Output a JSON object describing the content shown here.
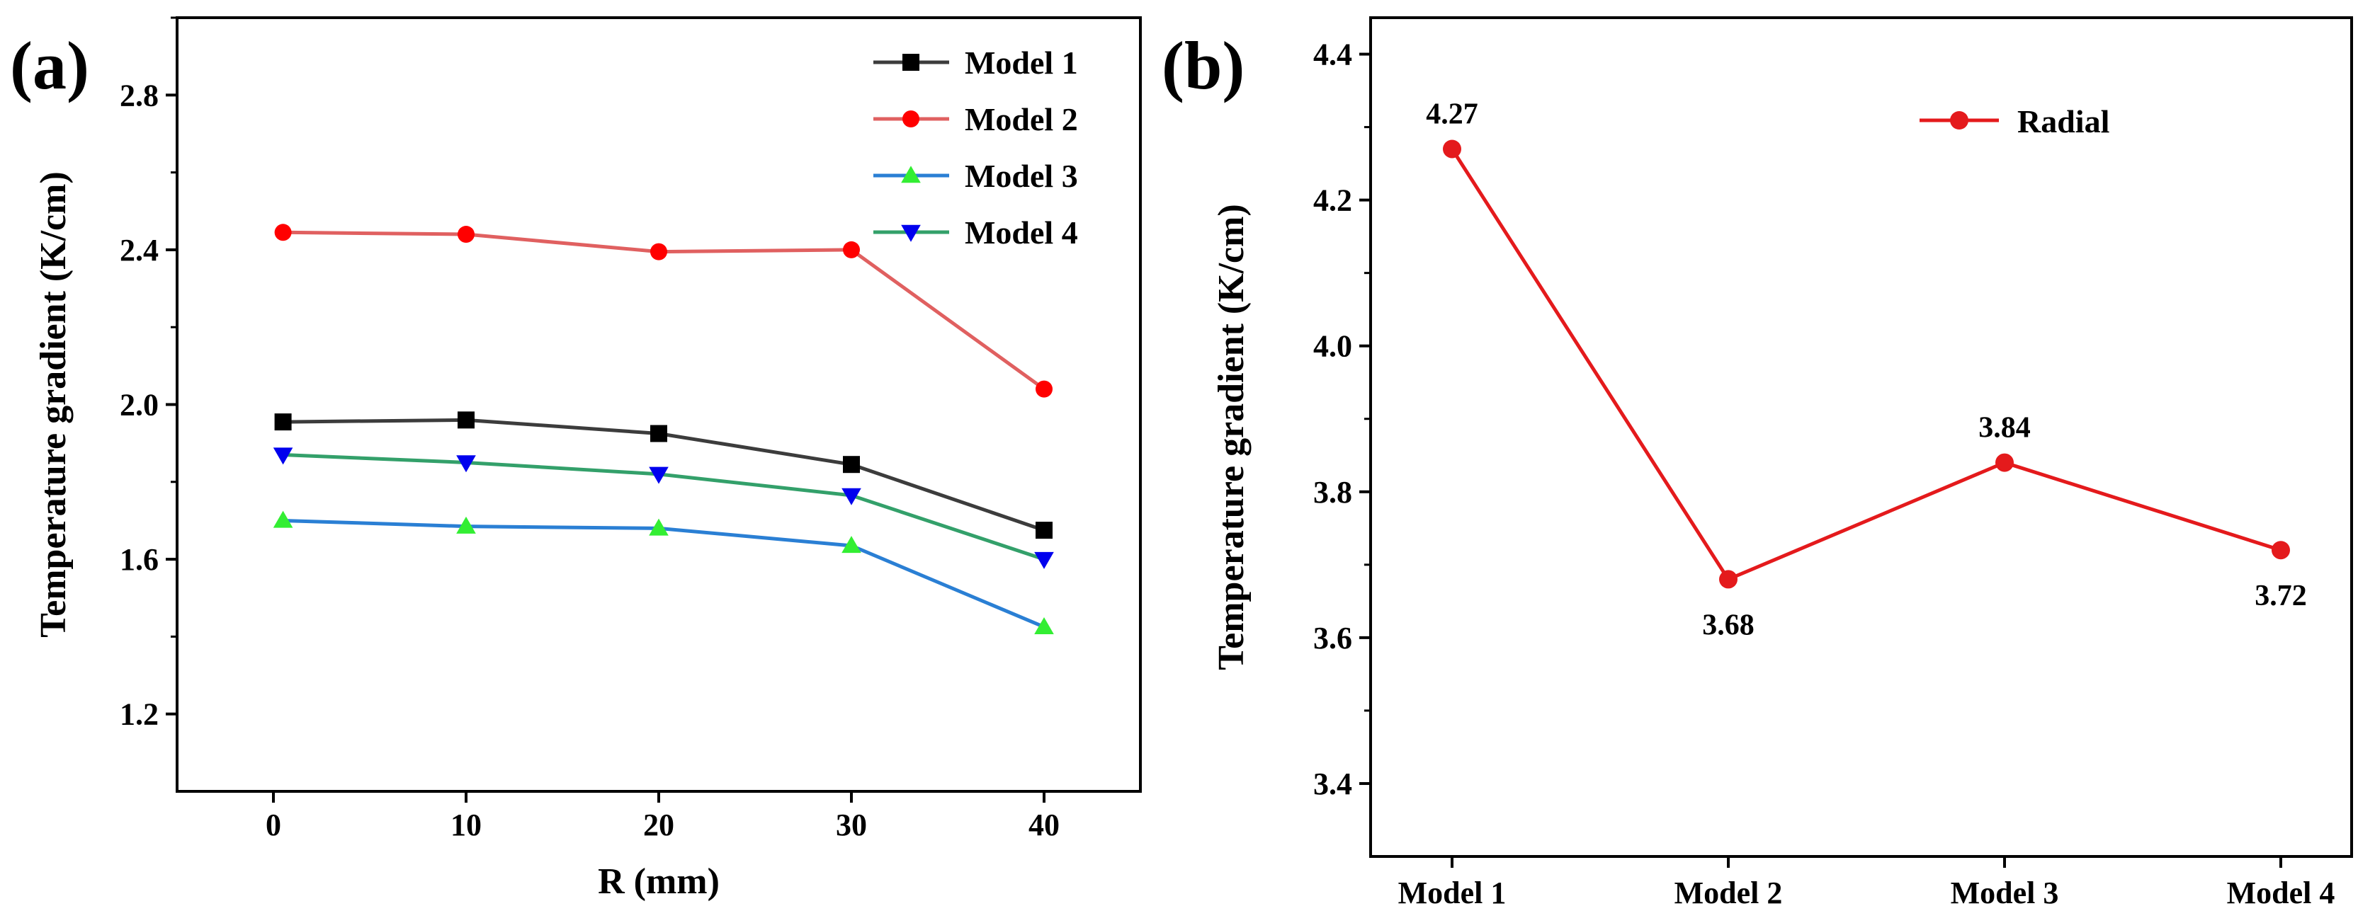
{
  "panels": {
    "a": {
      "letter": "(a)"
    },
    "b": {
      "letter": "(b)"
    }
  },
  "chart_data": [
    {
      "id": "a",
      "type": "line",
      "xlabel": "R (mm)",
      "ylabel": "Temperature gradient (K/cm)",
      "xlim": [
        -5,
        45
      ],
      "ylim": [
        1.0,
        3.0
      ],
      "x_ticks": [
        0,
        10,
        20,
        30,
        40
      ],
      "y_ticks": [
        1.2,
        1.6,
        2.0,
        2.4,
        2.8
      ],
      "x_tick_labels": [
        "0",
        "10",
        "20",
        "30",
        "40"
      ],
      "y_tick_labels": [
        "1.2",
        "1.6",
        "2.0",
        "2.4",
        "2.8"
      ],
      "grid": false,
      "legend_position": "top-right",
      "x": [
        0.5,
        10,
        20,
        30,
        40
      ],
      "series": [
        {
          "name": "Model 1",
          "values": [
            1.955,
            1.96,
            1.925,
            1.845,
            1.675
          ],
          "line_color": "#3c3c3c",
          "marker_color": "#000000",
          "marker": "square"
        },
        {
          "name": "Model 2",
          "values": [
            2.445,
            2.44,
            2.395,
            2.4,
            2.04
          ],
          "line_color": "#e06060",
          "marker_color": "#ff0000",
          "marker": "circle"
        },
        {
          "name": "Model 3",
          "values": [
            1.7,
            1.685,
            1.68,
            1.635,
            1.425
          ],
          "line_color": "#2a7fd4",
          "marker_color": "#33ee33",
          "marker": "triangle-up"
        },
        {
          "name": "Model 4",
          "values": [
            1.87,
            1.85,
            1.82,
            1.765,
            1.6
          ],
          "line_color": "#33a06a",
          "marker_color": "#0000ee",
          "marker": "triangle-down"
        }
      ]
    },
    {
      "id": "b",
      "type": "line",
      "xlabel": "",
      "ylabel": "Temperature gradient (K/cm)",
      "ylim": [
        3.3,
        4.45
      ],
      "y_ticks": [
        3.4,
        3.6,
        3.8,
        4.0,
        4.2,
        4.4
      ],
      "y_tick_labels": [
        "3.4",
        "3.6",
        "3.8",
        "4.0",
        "4.2",
        "4.4"
      ],
      "grid": false,
      "legend_position": "top-right",
      "categories": [
        "Model 1",
        "Model 2",
        "Model 3",
        "Model 4"
      ],
      "series": [
        {
          "name": "Radial",
          "values": [
            4.27,
            3.68,
            3.84,
            3.72
          ],
          "data_labels": [
            "4.27",
            "3.68",
            "3.84",
            "3.72"
          ],
          "data_label_positions": [
            "above",
            "below",
            "above",
            "below"
          ],
          "line_color": "#e41a1c",
          "marker_color": "#e41a1c",
          "marker": "circle"
        }
      ]
    }
  ]
}
